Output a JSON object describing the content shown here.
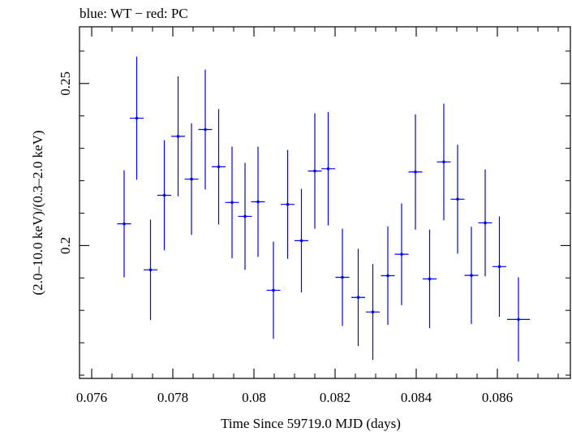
{
  "chart_data": {
    "type": "scatter",
    "title": "blue: WT − red: PC",
    "xlabel": "Time Since 59719.0 MJD (days)",
    "ylabel": "(2.0–10.0 keV)/(0.3–2.0 keV)",
    "xlim": [
      0.0757,
      0.0878
    ],
    "ylim": [
      0.159,
      0.2675
    ],
    "x_ticks": [
      0.076,
      0.078,
      0.08,
      0.082,
      0.084,
      0.086
    ],
    "x_tick_labels": [
      "0.076",
      "0.078",
      "0.08",
      "0.082",
      "0.084",
      "0.086"
    ],
    "y_ticks": [
      0.2,
      0.25
    ],
    "y_tick_labels": [
      "0.2",
      "0.25"
    ],
    "grid": false,
    "colors": {
      "WT": "#0000ff",
      "PC": "#ff0000",
      "axes": "#000000"
    },
    "series": [
      {
        "name": "WT",
        "points": [
          {
            "x": 0.0768,
            "xerr": 0.00017,
            "y": 0.2067,
            "yerr": 0.0165
          },
          {
            "x": 0.07711,
            "xerr": 0.00017,
            "y": 0.2393,
            "yerr": 0.019
          },
          {
            "x": 0.07745,
            "xerr": 0.00017,
            "y": 0.1925,
            "yerr": 0.0155
          },
          {
            "x": 0.07779,
            "xerr": 0.00017,
            "y": 0.2155,
            "yerr": 0.017
          },
          {
            "x": 0.07813,
            "xerr": 0.00017,
            "y": 0.2337,
            "yerr": 0.0185
          },
          {
            "x": 0.07846,
            "xerr": 0.00017,
            "y": 0.2205,
            "yerr": 0.0172
          },
          {
            "x": 0.0788,
            "xerr": 0.00017,
            "y": 0.2358,
            "yerr": 0.0185
          },
          {
            "x": 0.07913,
            "xerr": 0.00017,
            "y": 0.2243,
            "yerr": 0.0178
          },
          {
            "x": 0.07946,
            "xerr": 0.00017,
            "y": 0.2133,
            "yerr": 0.0172
          },
          {
            "x": 0.07978,
            "xerr": 0.00017,
            "y": 0.209,
            "yerr": 0.0165
          },
          {
            "x": 0.0801,
            "xerr": 0.00017,
            "y": 0.2135,
            "yerr": 0.017
          },
          {
            "x": 0.08048,
            "xerr": 0.00017,
            "y": 0.1862,
            "yerr": 0.015
          },
          {
            "x": 0.08083,
            "xerr": 0.00017,
            "y": 0.2127,
            "yerr": 0.0168
          },
          {
            "x": 0.08117,
            "xerr": 0.00017,
            "y": 0.2015,
            "yerr": 0.016
          },
          {
            "x": 0.0815,
            "xerr": 0.00017,
            "y": 0.223,
            "yerr": 0.0178
          },
          {
            "x": 0.08183,
            "xerr": 0.00017,
            "y": 0.2237,
            "yerr": 0.0175
          },
          {
            "x": 0.08218,
            "xerr": 0.00017,
            "y": 0.1902,
            "yerr": 0.015
          },
          {
            "x": 0.08257,
            "xerr": 0.00017,
            "y": 0.184,
            "yerr": 0.015
          },
          {
            "x": 0.08293,
            "xerr": 0.00017,
            "y": 0.1795,
            "yerr": 0.0148
          },
          {
            "x": 0.0833,
            "xerr": 0.00017,
            "y": 0.1907,
            "yerr": 0.0152
          },
          {
            "x": 0.08364,
            "xerr": 0.00017,
            "y": 0.1973,
            "yerr": 0.0157
          },
          {
            "x": 0.08398,
            "xerr": 0.00017,
            "y": 0.2227,
            "yerr": 0.0178
          },
          {
            "x": 0.08433,
            "xerr": 0.00017,
            "y": 0.1897,
            "yerr": 0.0152
          },
          {
            "x": 0.08468,
            "xerr": 0.00017,
            "y": 0.2258,
            "yerr": 0.018
          },
          {
            "x": 0.08502,
            "xerr": 0.00017,
            "y": 0.2143,
            "yerr": 0.0168
          },
          {
            "x": 0.08536,
            "xerr": 0.00017,
            "y": 0.1908,
            "yerr": 0.015
          },
          {
            "x": 0.0857,
            "xerr": 0.00017,
            "y": 0.207,
            "yerr": 0.0165
          },
          {
            "x": 0.08605,
            "xerr": 0.00017,
            "y": 0.1935,
            "yerr": 0.0155
          },
          {
            "x": 0.08652,
            "xerr": 0.00028,
            "y": 0.1772,
            "yerr": 0.013
          }
        ]
      }
    ]
  }
}
